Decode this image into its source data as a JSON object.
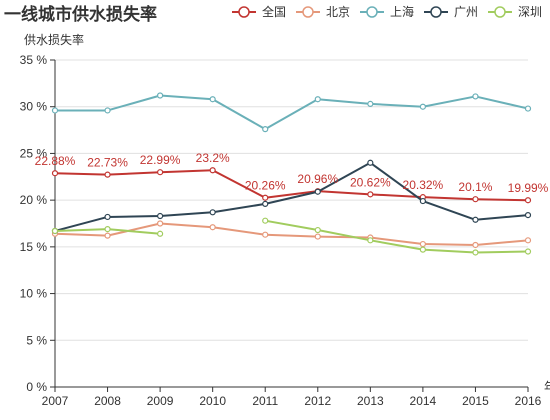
{
  "chart_data": {
    "type": "line",
    "title": "一线城市供水损失率",
    "ylabel": "供水损失率",
    "xlabel": "年份",
    "categories": [
      "2007",
      "2008",
      "2009",
      "2010",
      "2011",
      "2012",
      "2013",
      "2014",
      "2015",
      "2016"
    ],
    "ylim": [
      0,
      35
    ],
    "y_ticks": [
      {
        "value": 0,
        "label": "0 %"
      },
      {
        "value": 5,
        "label": "5 %"
      },
      {
        "value": 10,
        "label": "10 %"
      },
      {
        "value": 15,
        "label": "15 %"
      },
      {
        "value": 20,
        "label": "20 %"
      },
      {
        "value": 25,
        "label": "25 %"
      },
      {
        "value": 30,
        "label": "30 %"
      },
      {
        "value": 35,
        "label": "35 %"
      }
    ],
    "grid": true,
    "legend_position": "top-right",
    "series": [
      {
        "name": "全国",
        "color": "#c23531",
        "values": [
          22.88,
          22.73,
          22.99,
          23.2,
          20.26,
          20.96,
          20.62,
          20.32,
          20.1,
          19.99
        ],
        "labels": [
          "22.88%",
          "22.73%",
          "22.99%",
          "23.2%",
          "20.26%",
          "20.96%",
          "20.62%",
          "20.32%",
          "20.1%",
          "19.99%"
        ]
      },
      {
        "name": "北京",
        "color": "#e5987a",
        "values": [
          16.4,
          16.2,
          17.5,
          17.1,
          16.3,
          16.1,
          16.0,
          15.3,
          15.2,
          15.7
        ]
      },
      {
        "name": "上海",
        "color": "#6ab0b8",
        "values": [
          29.6,
          29.6,
          31.2,
          30.8,
          27.6,
          30.8,
          30.3,
          30.0,
          31.1,
          29.8
        ]
      },
      {
        "name": "广州",
        "color": "#2f4554",
        "values": [
          16.7,
          18.2,
          18.3,
          18.7,
          19.6,
          20.9,
          24.0,
          19.9,
          17.9,
          18.4
        ]
      },
      {
        "name": "深圳",
        "color": "#a1cc5e",
        "values": [
          16.7,
          16.9,
          16.4,
          null,
          17.8,
          16.8,
          15.7,
          14.7,
          14.4,
          14.5
        ]
      }
    ]
  }
}
